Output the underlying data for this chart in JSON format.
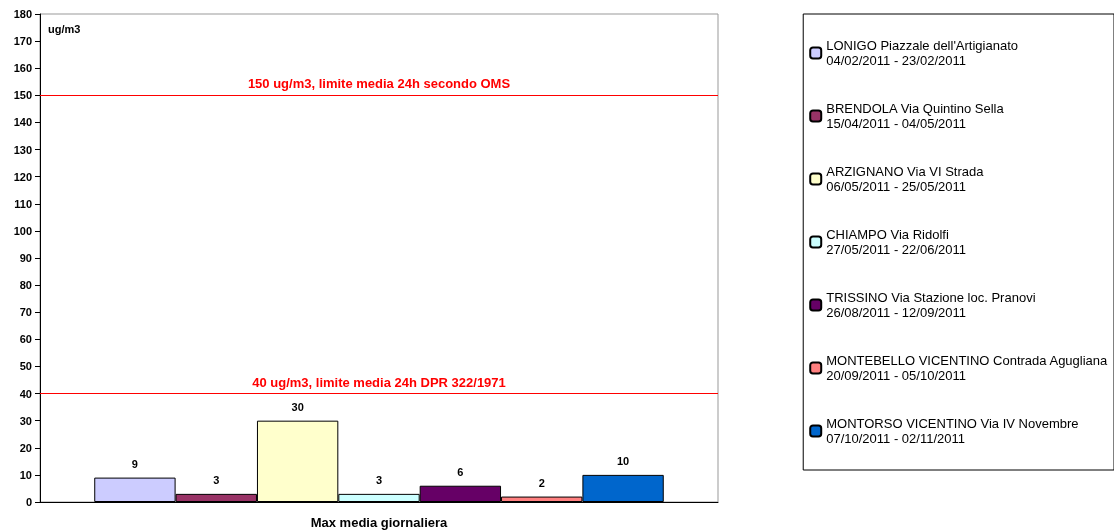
{
  "chart_data": {
    "type": "bar",
    "ylabel": "ug/m3",
    "categories": [
      "Max media giornaliera"
    ],
    "series": [
      {
        "name": "LONIGO Piazzale dell'Artigianato\n04/02/2011 - 23/02/2011",
        "color": "#ccccff",
        "values": [
          9
        ]
      },
      {
        "name": "BRENDOLA Via Quintino Sella\n15/04/2011 - 04/05/2011",
        "color": "#993366",
        "values": [
          3
        ]
      },
      {
        "name": "ARZIGNANO Via VI Strada\n06/05/2011 - 25/05/2011",
        "color": "#ffffcc",
        "values": [
          30
        ]
      },
      {
        "name": "CHIAMPO Via Ridolfi\n27/05/2011 - 22/06/2011",
        "color": "#ccffff",
        "values": [
          3
        ]
      },
      {
        "name": "TRISSINO Via Stazione loc. Pranovi\n26/08/2011 - 12/09/2011",
        "color": "#660066",
        "values": [
          6
        ]
      },
      {
        "name": "MONTEBELLO VICENTINO Contrada Agugliana\n20/09/2011 - 05/10/2011",
        "color": "#ff8080",
        "values": [
          2
        ]
      },
      {
        "name": "MONTORSO VICENTINO Via IV Novembre\n07/10/2011 - 02/11/2011",
        "color": "#0066cc",
        "values": [
          10
        ]
      }
    ],
    "ylim": [
      0,
      180
    ],
    "yticks": [
      0,
      10,
      20,
      30,
      40,
      50,
      60,
      70,
      80,
      90,
      100,
      110,
      120,
      130,
      140,
      150,
      160,
      170,
      180
    ],
    "ref_lines": [
      {
        "axis": "y",
        "value": 150,
        "label": "150 ug/m3, limite media 24h secondo OMS",
        "color": "#ff0000"
      },
      {
        "axis": "y",
        "value": 40,
        "label": "40 ug/m3, limite media 24h DPR 322/1971",
        "color": "#ff0000"
      }
    ],
    "data_labels": true,
    "grid": false,
    "legend": "right"
  }
}
